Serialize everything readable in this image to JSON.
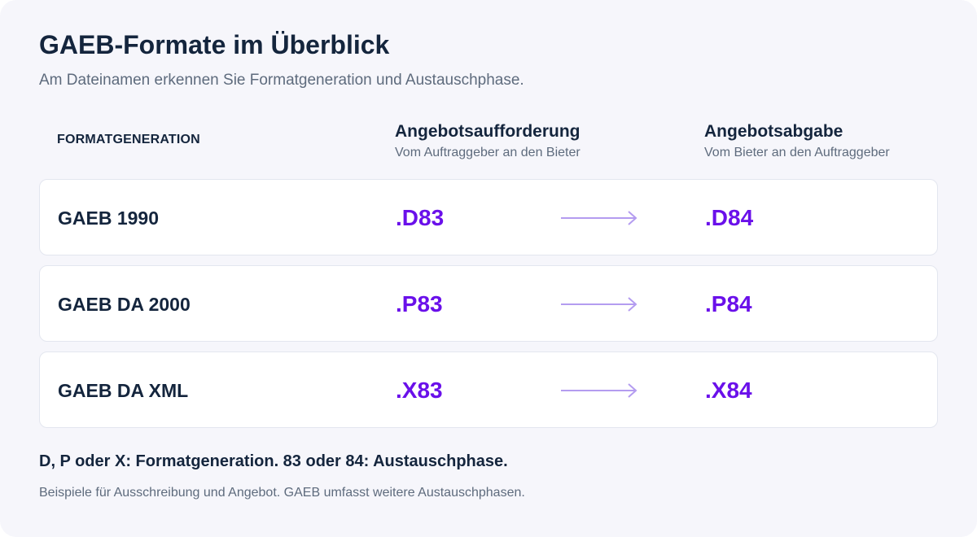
{
  "title": "GAEB-Formate im Überblick",
  "subtitle": "Am Dateinamen erkennen Sie Formatgeneration und Austauschphase.",
  "columns": {
    "generation": "FORMATGENERATION",
    "request": {
      "heading": "Angebotsaufforderung",
      "subheading": "Vom Auftraggeber an den Bieter"
    },
    "offer": {
      "heading": "Angebotsabgabe",
      "subheading": "Vom Bieter an den Auftraggeber"
    }
  },
  "rows": [
    {
      "generation": "GAEB 1990",
      "request": ".D83",
      "offer": ".D84"
    },
    {
      "generation": "GAEB DA 2000",
      "request": ".P83",
      "offer": ".P84"
    },
    {
      "generation": "GAEB DA XML",
      "request": ".X83",
      "offer": ".X84"
    }
  ],
  "footer": {
    "legend": "D, P oder X: Formatgeneration. 83 oder 84: Austauschphase.",
    "note": "Beispiele für Ausschreibung und Angebot. GAEB umfasst weitere Austauschphasen."
  },
  "colors": {
    "background": "#f6f6fb",
    "text_dark": "#14253d",
    "text_muted": "#5e6b7d",
    "accent": "#6a10ea",
    "arrow": "#b49cf0",
    "row_border": "#e3e6ef"
  },
  "icons": {
    "flow_arrow": "arrow-right-icon"
  }
}
